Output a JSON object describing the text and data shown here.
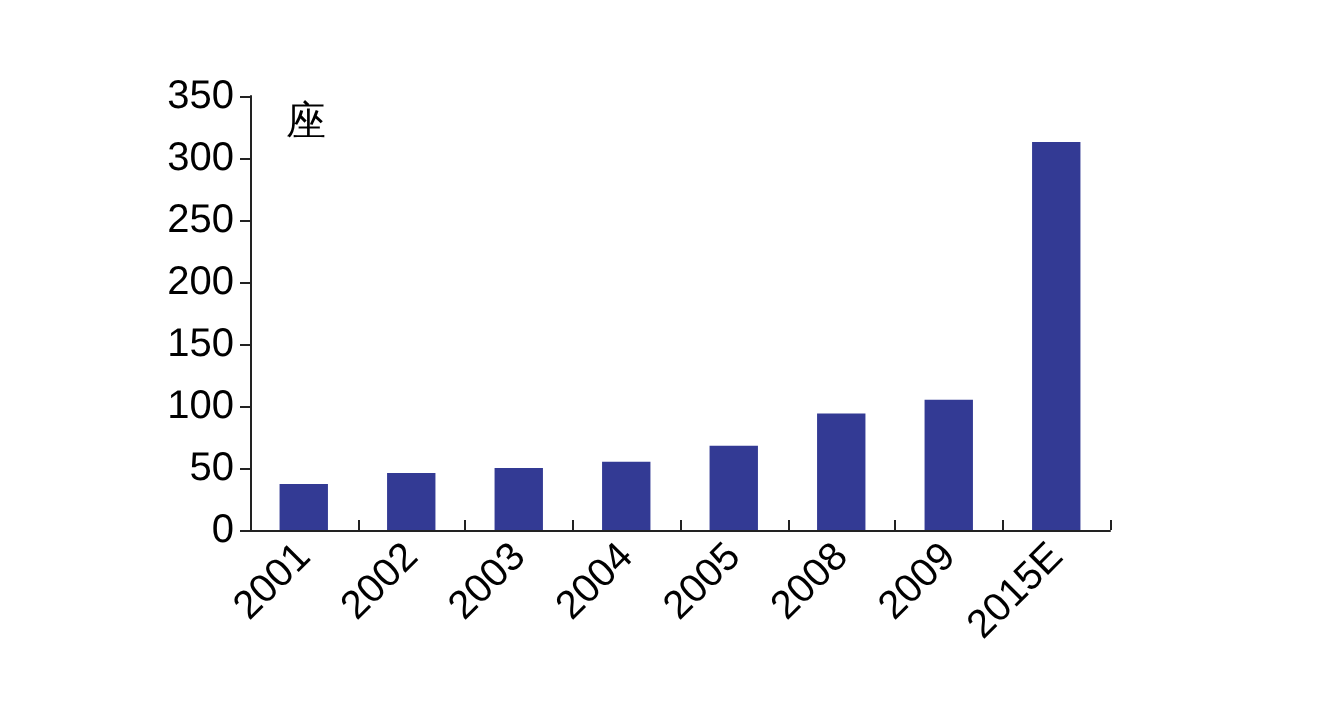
{
  "chart_data": {
    "type": "bar",
    "ylabel": "座",
    "categories": [
      "2001",
      "2002",
      "2003",
      "2004",
      "2005",
      "2008",
      "2009",
      "2015E"
    ],
    "values": [
      37,
      46,
      50,
      55,
      68,
      94,
      105,
      313
    ],
    "color": "#333a94",
    "ylim": [
      0,
      350
    ],
    "yticks": [
      0,
      50,
      100,
      150,
      200,
      250,
      300,
      350
    ],
    "grid": false
  }
}
